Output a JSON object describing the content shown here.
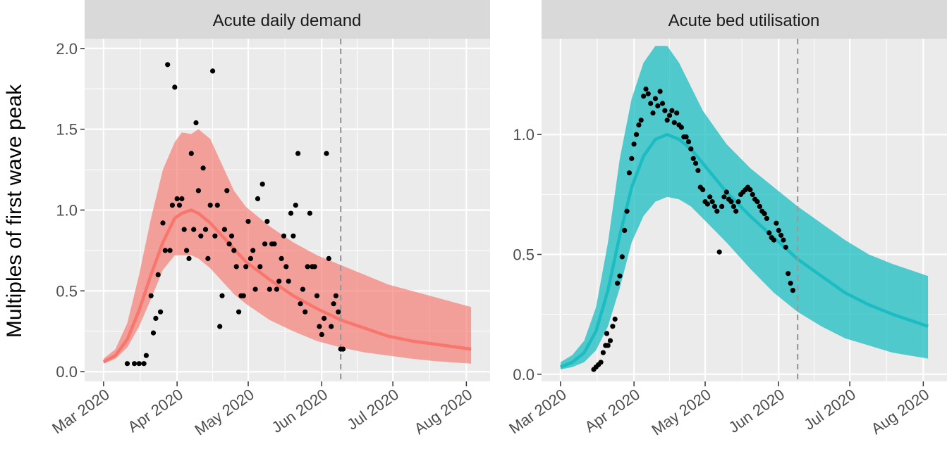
{
  "ylabel": "Multiples of first wave peak",
  "panels": [
    {
      "title": "Acute daily demand"
    },
    {
      "title": "Acute bed utilisation"
    }
  ],
  "x_ticks": [
    "Mar 2020",
    "Apr 2020",
    "May 2020",
    "Jun 2020",
    "Jul 2020",
    "Aug 2020"
  ],
  "x_ticks_days": [
    0,
    31,
    61,
    92,
    122,
    153
  ],
  "chart_data": [
    {
      "type": "line",
      "title": "Acute daily demand",
      "xlabel": "",
      "ylabel": "Multiples of first wave peak",
      "x_unit": "days since 1 Mar 2020",
      "xlim": [
        -8,
        163
      ],
      "ylim": [
        -0.06,
        2.06
      ],
      "y_ticks": [
        "0.0",
        "0.5",
        "1.0",
        "1.5",
        "2.0"
      ],
      "y_tick_values": [
        0,
        0.5,
        1,
        1.5,
        2
      ],
      "vline_x": 100,
      "vline_style": "dashed",
      "color": "#F8766D",
      "band_color": "#F8766D",
      "band_opacity": 0.65,
      "line_x": [
        0,
        5,
        10,
        15,
        20,
        25,
        30,
        33,
        37,
        40,
        45,
        50,
        55,
        60,
        70,
        80,
        90,
        100,
        110,
        120,
        130,
        140,
        155
      ],
      "line_y": [
        0.06,
        0.1,
        0.2,
        0.38,
        0.6,
        0.8,
        0.95,
        0.98,
        1.0,
        0.98,
        0.92,
        0.84,
        0.76,
        0.68,
        0.57,
        0.47,
        0.39,
        0.32,
        0.27,
        0.22,
        0.19,
        0.17,
        0.14
      ],
      "band_upper": [
        0.08,
        0.14,
        0.3,
        0.6,
        0.95,
        1.25,
        1.42,
        1.48,
        1.47,
        1.5,
        1.44,
        1.28,
        1.12,
        1.02,
        0.9,
        0.8,
        0.72,
        0.66,
        0.6,
        0.54,
        0.5,
        0.46,
        0.4
      ],
      "band_lower": [
        0.05,
        0.08,
        0.15,
        0.28,
        0.45,
        0.63,
        0.72,
        0.72,
        0.72,
        0.7,
        0.64,
        0.56,
        0.48,
        0.42,
        0.32,
        0.25,
        0.19,
        0.15,
        0.12,
        0.1,
        0.08,
        0.065,
        0.05
      ],
      "points": [
        [
          10,
          0.05
        ],
        [
          13,
          0.05
        ],
        [
          15,
          0.05
        ],
        [
          17,
          0.05
        ],
        [
          18,
          0.1
        ],
        [
          20,
          0.47
        ],
        [
          21,
          0.24
        ],
        [
          22,
          0.33
        ],
        [
          23,
          0.6
        ],
        [
          24,
          0.37
        ],
        [
          25,
          0.92
        ],
        [
          26,
          0.75
        ],
        [
          27,
          1.9
        ],
        [
          28,
          0.75
        ],
        [
          29,
          1.03
        ],
        [
          30,
          1.76
        ],
        [
          31,
          1.07
        ],
        [
          32,
          1.03
        ],
        [
          33,
          1.07
        ],
        [
          34,
          0.88
        ],
        [
          35,
          0.75
        ],
        [
          36,
          0.7
        ],
        [
          37,
          1.35
        ],
        [
          38,
          0.88
        ],
        [
          39,
          1.54
        ],
        [
          40,
          1.12
        ],
        [
          41,
          0.84
        ],
        [
          42,
          1.26
        ],
        [
          43,
          0.88
        ],
        [
          44,
          0.7
        ],
        [
          45,
          1.03
        ],
        [
          46,
          1.86
        ],
        [
          47,
          0.84
        ],
        [
          48,
          1.03
        ],
        [
          49,
          0.28
        ],
        [
          50,
          0.47
        ],
        [
          51,
          0.88
        ],
        [
          52,
          1.12
        ],
        [
          53,
          0.79
        ],
        [
          54,
          0.84
        ],
        [
          55,
          0.75
        ],
        [
          56,
          0.65
        ],
        [
          57,
          0.37
        ],
        [
          58,
          0.47
        ],
        [
          59,
          0.47
        ],
        [
          60,
          0.65
        ],
        [
          61,
          0.93
        ],
        [
          62,
          0.7
        ],
        [
          63,
          0.75
        ],
        [
          64,
          0.51
        ],
        [
          65,
          1.07
        ],
        [
          66,
          0.65
        ],
        [
          67,
          1.16
        ],
        [
          68,
          0.79
        ],
        [
          69,
          0.93
        ],
        [
          70,
          0.51
        ],
        [
          71,
          0.79
        ],
        [
          72,
          0.79
        ],
        [
          73,
          0.51
        ],
        [
          74,
          0.56
        ],
        [
          75,
          0.7
        ],
        [
          76,
          0.84
        ],
        [
          77,
          0.65
        ],
        [
          78,
          0.56
        ],
        [
          79,
          0.98
        ],
        [
          80,
          0.84
        ],
        [
          81,
          1.03
        ],
        [
          82,
          1.35
        ],
        [
          83,
          0.42
        ],
        [
          84,
          0.51
        ],
        [
          85,
          0.37
        ],
        [
          86,
          0.65
        ],
        [
          87,
          0.98
        ],
        [
          88,
          0.65
        ],
        [
          89,
          0.65
        ],
        [
          90,
          0.47
        ],
        [
          91,
          0.28
        ],
        [
          92,
          0.23
        ],
        [
          93,
          0.33
        ],
        [
          94,
          1.35
        ],
        [
          95,
          0.7
        ],
        [
          96,
          0.28
        ],
        [
          97,
          0.42
        ],
        [
          98,
          0.47
        ],
        [
          99,
          0.37
        ],
        [
          100,
          0.14
        ],
        [
          101,
          0.14
        ]
      ]
    },
    {
      "type": "line",
      "title": "Acute bed utilisation",
      "xlabel": "",
      "ylabel": "Multiples of first wave peak",
      "x_unit": "days since 1 Mar 2020",
      "xlim": [
        -8,
        163
      ],
      "ylim": [
        -0.03,
        1.4
      ],
      "y_ticks": [
        "0.0",
        "0.5",
        "1.0"
      ],
      "y_tick_values": [
        0,
        0.5,
        1
      ],
      "vline_x": 100,
      "vline_style": "dashed",
      "color": "#1CBDC2",
      "band_color": "#1CBDC2",
      "band_opacity": 0.75,
      "line_x": [
        0,
        5,
        10,
        15,
        20,
        25,
        30,
        35,
        40,
        45,
        50,
        55,
        60,
        70,
        80,
        90,
        100,
        110,
        120,
        130,
        140,
        155
      ],
      "line_y": [
        0.03,
        0.05,
        0.09,
        0.18,
        0.35,
        0.58,
        0.78,
        0.91,
        0.98,
        1.0,
        0.98,
        0.94,
        0.88,
        0.76,
        0.66,
        0.57,
        0.48,
        0.41,
        0.34,
        0.29,
        0.25,
        0.2
      ],
      "band_upper": [
        0.05,
        0.08,
        0.14,
        0.28,
        0.55,
        0.9,
        1.15,
        1.3,
        1.37,
        1.37,
        1.3,
        1.2,
        1.1,
        0.96,
        0.86,
        0.78,
        0.7,
        0.63,
        0.56,
        0.5,
        0.46,
        0.41
      ],
      "band_lower": [
        0.02,
        0.03,
        0.05,
        0.1,
        0.2,
        0.36,
        0.55,
        0.66,
        0.72,
        0.74,
        0.73,
        0.7,
        0.65,
        0.55,
        0.44,
        0.34,
        0.26,
        0.2,
        0.15,
        0.12,
        0.09,
        0.065
      ],
      "points": [
        [
          14,
          0.02
        ],
        [
          15,
          0.03
        ],
        [
          16,
          0.04
        ],
        [
          17,
          0.05
        ],
        [
          18,
          0.09
        ],
        [
          19,
          0.12
        ],
        [
          19.5,
          0.17
        ],
        [
          20,
          0.12
        ],
        [
          21,
          0.14
        ],
        [
          22,
          0.2
        ],
        [
          23,
          0.23
        ],
        [
          24,
          0.38
        ],
        [
          25,
          0.41
        ],
        [
          26,
          0.49
        ],
        [
          27,
          0.6
        ],
        [
          28,
          0.68
        ],
        [
          29,
          0.84
        ],
        [
          30,
          0.9
        ],
        [
          31,
          0.96
        ],
        [
          32,
          1.0
        ],
        [
          33,
          1.04
        ],
        [
          34,
          1.06
        ],
        [
          35,
          1.16
        ],
        [
          36,
          1.19
        ],
        [
          37,
          1.17
        ],
        [
          38,
          1.13
        ],
        [
          39,
          1.09
        ],
        [
          40,
          1.15
        ],
        [
          41,
          1.12
        ],
        [
          42,
          1.18
        ],
        [
          43,
          1.13
        ],
        [
          44,
          1.1
        ],
        [
          45,
          1.06
        ],
        [
          46,
          1.08
        ],
        [
          47,
          1.1
        ],
        [
          48,
          1.05
        ],
        [
          49,
          1.09
        ],
        [
          50,
          1.04
        ],
        [
          51,
          1.03
        ],
        [
          52,
          0.99
        ],
        [
          53,
          0.99
        ],
        [
          54,
          0.97
        ],
        [
          55,
          0.94
        ],
        [
          56,
          0.9
        ],
        [
          57,
          0.88
        ],
        [
          58,
          0.85
        ],
        [
          59,
          0.78
        ],
        [
          60,
          0.77
        ],
        [
          61,
          0.72
        ],
        [
          62,
          0.71
        ],
        [
          63,
          0.74
        ],
        [
          64,
          0.72
        ],
        [
          65,
          0.7
        ],
        [
          66,
          0.68
        ],
        [
          67,
          0.51
        ],
        [
          68,
          0.7
        ],
        [
          69,
          0.74
        ],
        [
          70,
          0.76
        ],
        [
          71,
          0.73
        ],
        [
          72,
          0.72
        ],
        [
          73,
          0.7
        ],
        [
          74,
          0.68
        ],
        [
          75,
          0.72
        ],
        [
          76,
          0.75
        ],
        [
          77,
          0.76
        ],
        [
          78,
          0.77
        ],
        [
          79,
          0.78
        ],
        [
          80,
          0.77
        ],
        [
          81,
          0.75
        ],
        [
          82,
          0.73
        ],
        [
          83,
          0.72
        ],
        [
          84,
          0.7
        ],
        [
          85,
          0.68
        ],
        [
          86,
          0.67
        ],
        [
          87,
          0.65
        ],
        [
          88,
          0.59
        ],
        [
          89,
          0.57
        ],
        [
          90,
          0.56
        ],
        [
          91,
          0.63
        ],
        [
          92,
          0.6
        ],
        [
          93,
          0.58
        ],
        [
          94,
          0.56
        ],
        [
          95,
          0.53
        ],
        [
          96,
          0.42
        ],
        [
          97,
          0.38
        ],
        [
          98,
          0.35
        ]
      ]
    }
  ]
}
